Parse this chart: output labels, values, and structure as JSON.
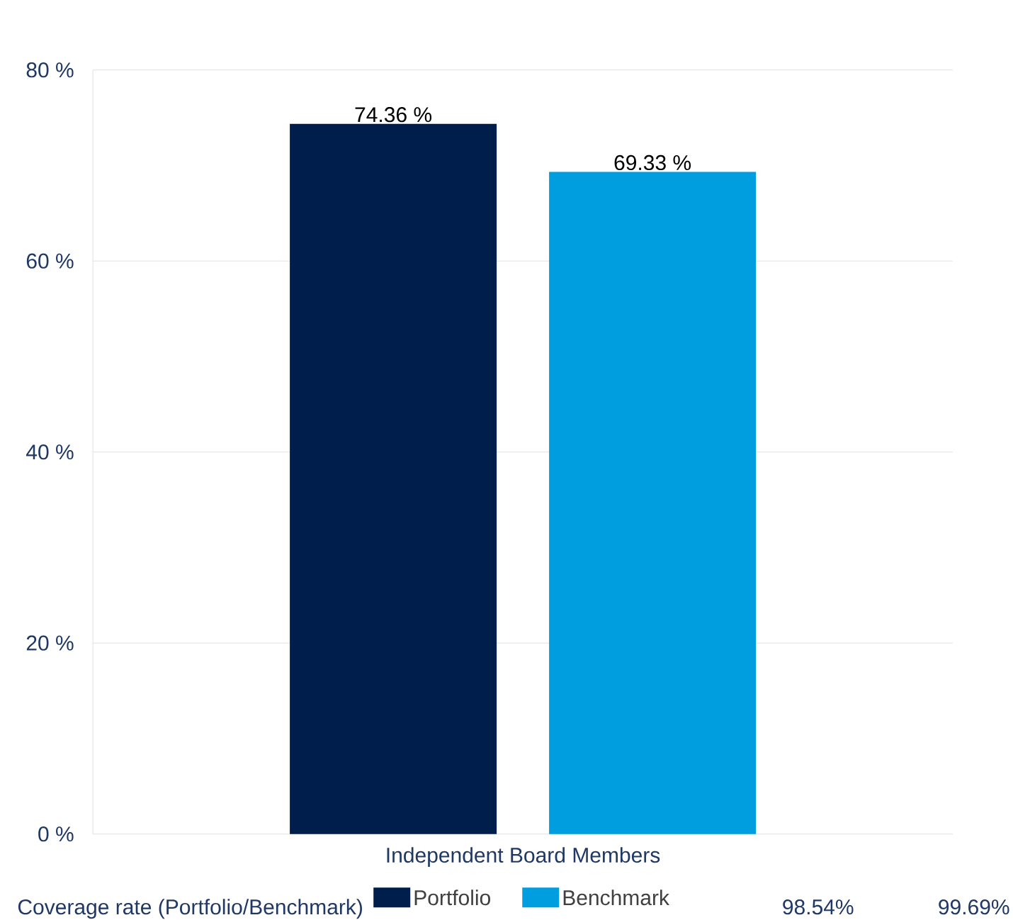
{
  "chart_data": {
    "type": "bar",
    "categories": [
      "Independent Board Members"
    ],
    "series": [
      {
        "name": "Portfolio",
        "color": "#001e4b",
        "values": [
          74.36
        ],
        "value_labels": [
          "74.36 %"
        ]
      },
      {
        "name": "Benchmark",
        "color": "#009ddf",
        "values": [
          69.33
        ],
        "value_labels": [
          "69.33 %"
        ]
      }
    ],
    "ylim": [
      0,
      80
    ],
    "yticks": [
      {
        "value": 0,
        "label": "0 %"
      },
      {
        "value": 20,
        "label": "20 %"
      },
      {
        "value": 40,
        "label": "40 %"
      },
      {
        "value": 60,
        "label": "60 %"
      },
      {
        "value": 80,
        "label": "80 %"
      }
    ],
    "grid": "y",
    "legend": "bottom",
    "annotations": [
      "Coverage rate (Portfolio/Benchmark)",
      "98.54%",
      "99.69%"
    ]
  }
}
